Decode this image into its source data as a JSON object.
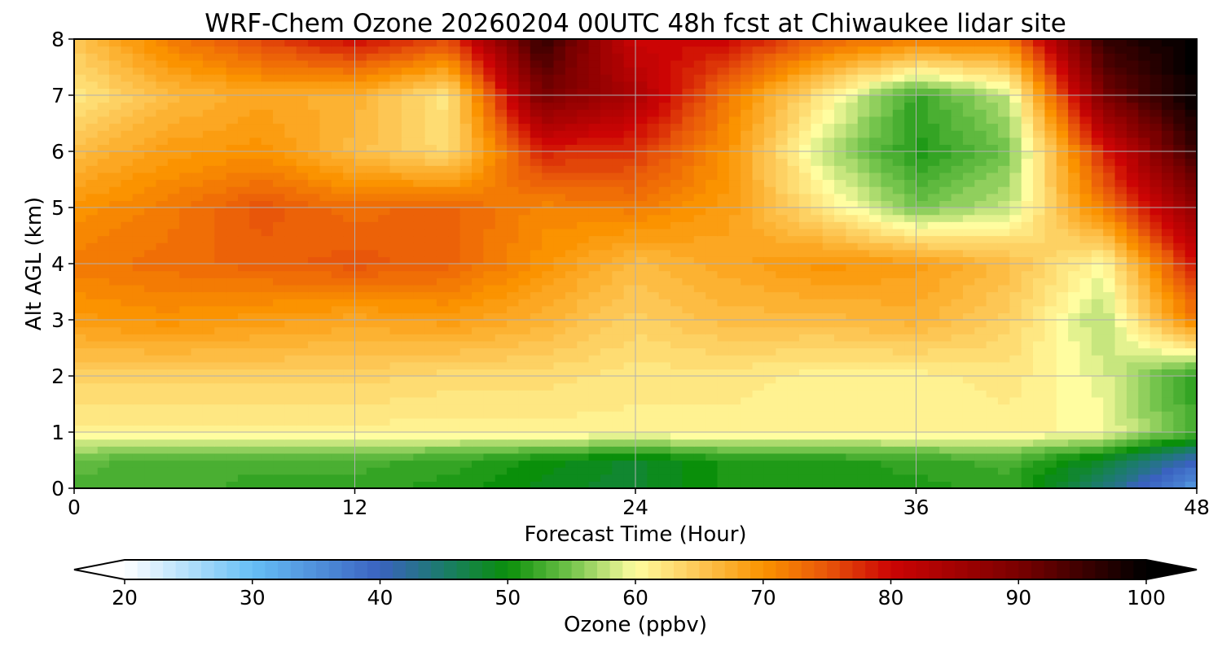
{
  "chart_data": {
    "type": "heatmap",
    "title": "WRF-Chem Ozone  20260204 00UTC 48h fcst at Chiwaukee lidar site",
    "xlabel": "Forecast Time (Hour)",
    "ylabel": "Alt AGL (km)",
    "xlim": [
      0,
      48
    ],
    "ylim": [
      0,
      8
    ],
    "xticks": [
      0,
      12,
      24,
      36,
      48
    ],
    "yticks": [
      0,
      1,
      2,
      3,
      4,
      5,
      6,
      7,
      8
    ],
    "grid": true,
    "x_hours": [
      0,
      4,
      8,
      12,
      16,
      20,
      24,
      28,
      32,
      36,
      40,
      44,
      48
    ],
    "altitudes_km": [
      0,
      0.5,
      1,
      2,
      3,
      4,
      5,
      6,
      7,
      8
    ],
    "ozone_ppbv": [
      [
        53,
        53,
        52,
        52,
        51,
        49,
        48,
        51,
        51,
        51,
        52,
        44,
        34
      ],
      [
        54,
        53,
        53,
        53,
        52,
        50,
        48,
        51,
        51,
        52,
        53,
        48,
        40
      ],
      [
        61,
        61,
        61,
        61,
        61,
        61,
        61,
        61,
        61,
        61,
        61,
        60,
        53
      ],
      [
        64,
        64,
        64,
        64,
        63,
        63,
        62,
        62,
        61,
        61,
        62,
        59,
        51
      ],
      [
        69,
        70,
        69,
        68,
        69,
        67,
        64,
        66,
        66,
        67,
        64,
        57,
        72
      ],
      [
        72,
        73,
        74,
        75,
        74,
        70,
        66,
        68,
        70,
        69,
        66,
        60,
        80
      ],
      [
        70,
        72,
        75,
        73,
        74,
        71,
        72,
        69,
        62,
        55,
        58,
        72,
        88
      ],
      [
        66,
        69,
        70,
        66,
        63,
        78,
        77,
        70,
        58,
        51,
        55,
        78,
        96
      ],
      [
        62,
        66,
        68,
        67,
        62,
        90,
        84,
        72,
        62,
        52,
        58,
        90,
        100
      ],
      [
        65,
        72,
        76,
        80,
        76,
        96,
        80,
        80,
        74,
        72,
        72,
        96,
        100
      ]
    ],
    "colorbar": {
      "label": "Ozone  (ppbv)",
      "min": 20,
      "max": 100,
      "ticks": [
        20,
        30,
        40,
        50,
        60,
        70,
        80,
        90,
        100
      ],
      "extend": "both",
      "anchors": [
        {
          "v": 20,
          "c": "#ffffff"
        },
        {
          "v": 30,
          "c": "#66bff6"
        },
        {
          "v": 40,
          "c": "#3a62c0"
        },
        {
          "v": 45,
          "c": "#1b7c6a"
        },
        {
          "v": 50,
          "c": "#0a8f0a"
        },
        {
          "v": 55,
          "c": "#74c44c"
        },
        {
          "v": 60,
          "c": "#fffda0"
        },
        {
          "v": 65,
          "c": "#fdc654"
        },
        {
          "v": 70,
          "c": "#fb9300"
        },
        {
          "v": 75,
          "c": "#e8560a"
        },
        {
          "v": 80,
          "c": "#cc0404"
        },
        {
          "v": 90,
          "c": "#7a0000"
        },
        {
          "v": 100,
          "c": "#000000"
        }
      ]
    }
  }
}
